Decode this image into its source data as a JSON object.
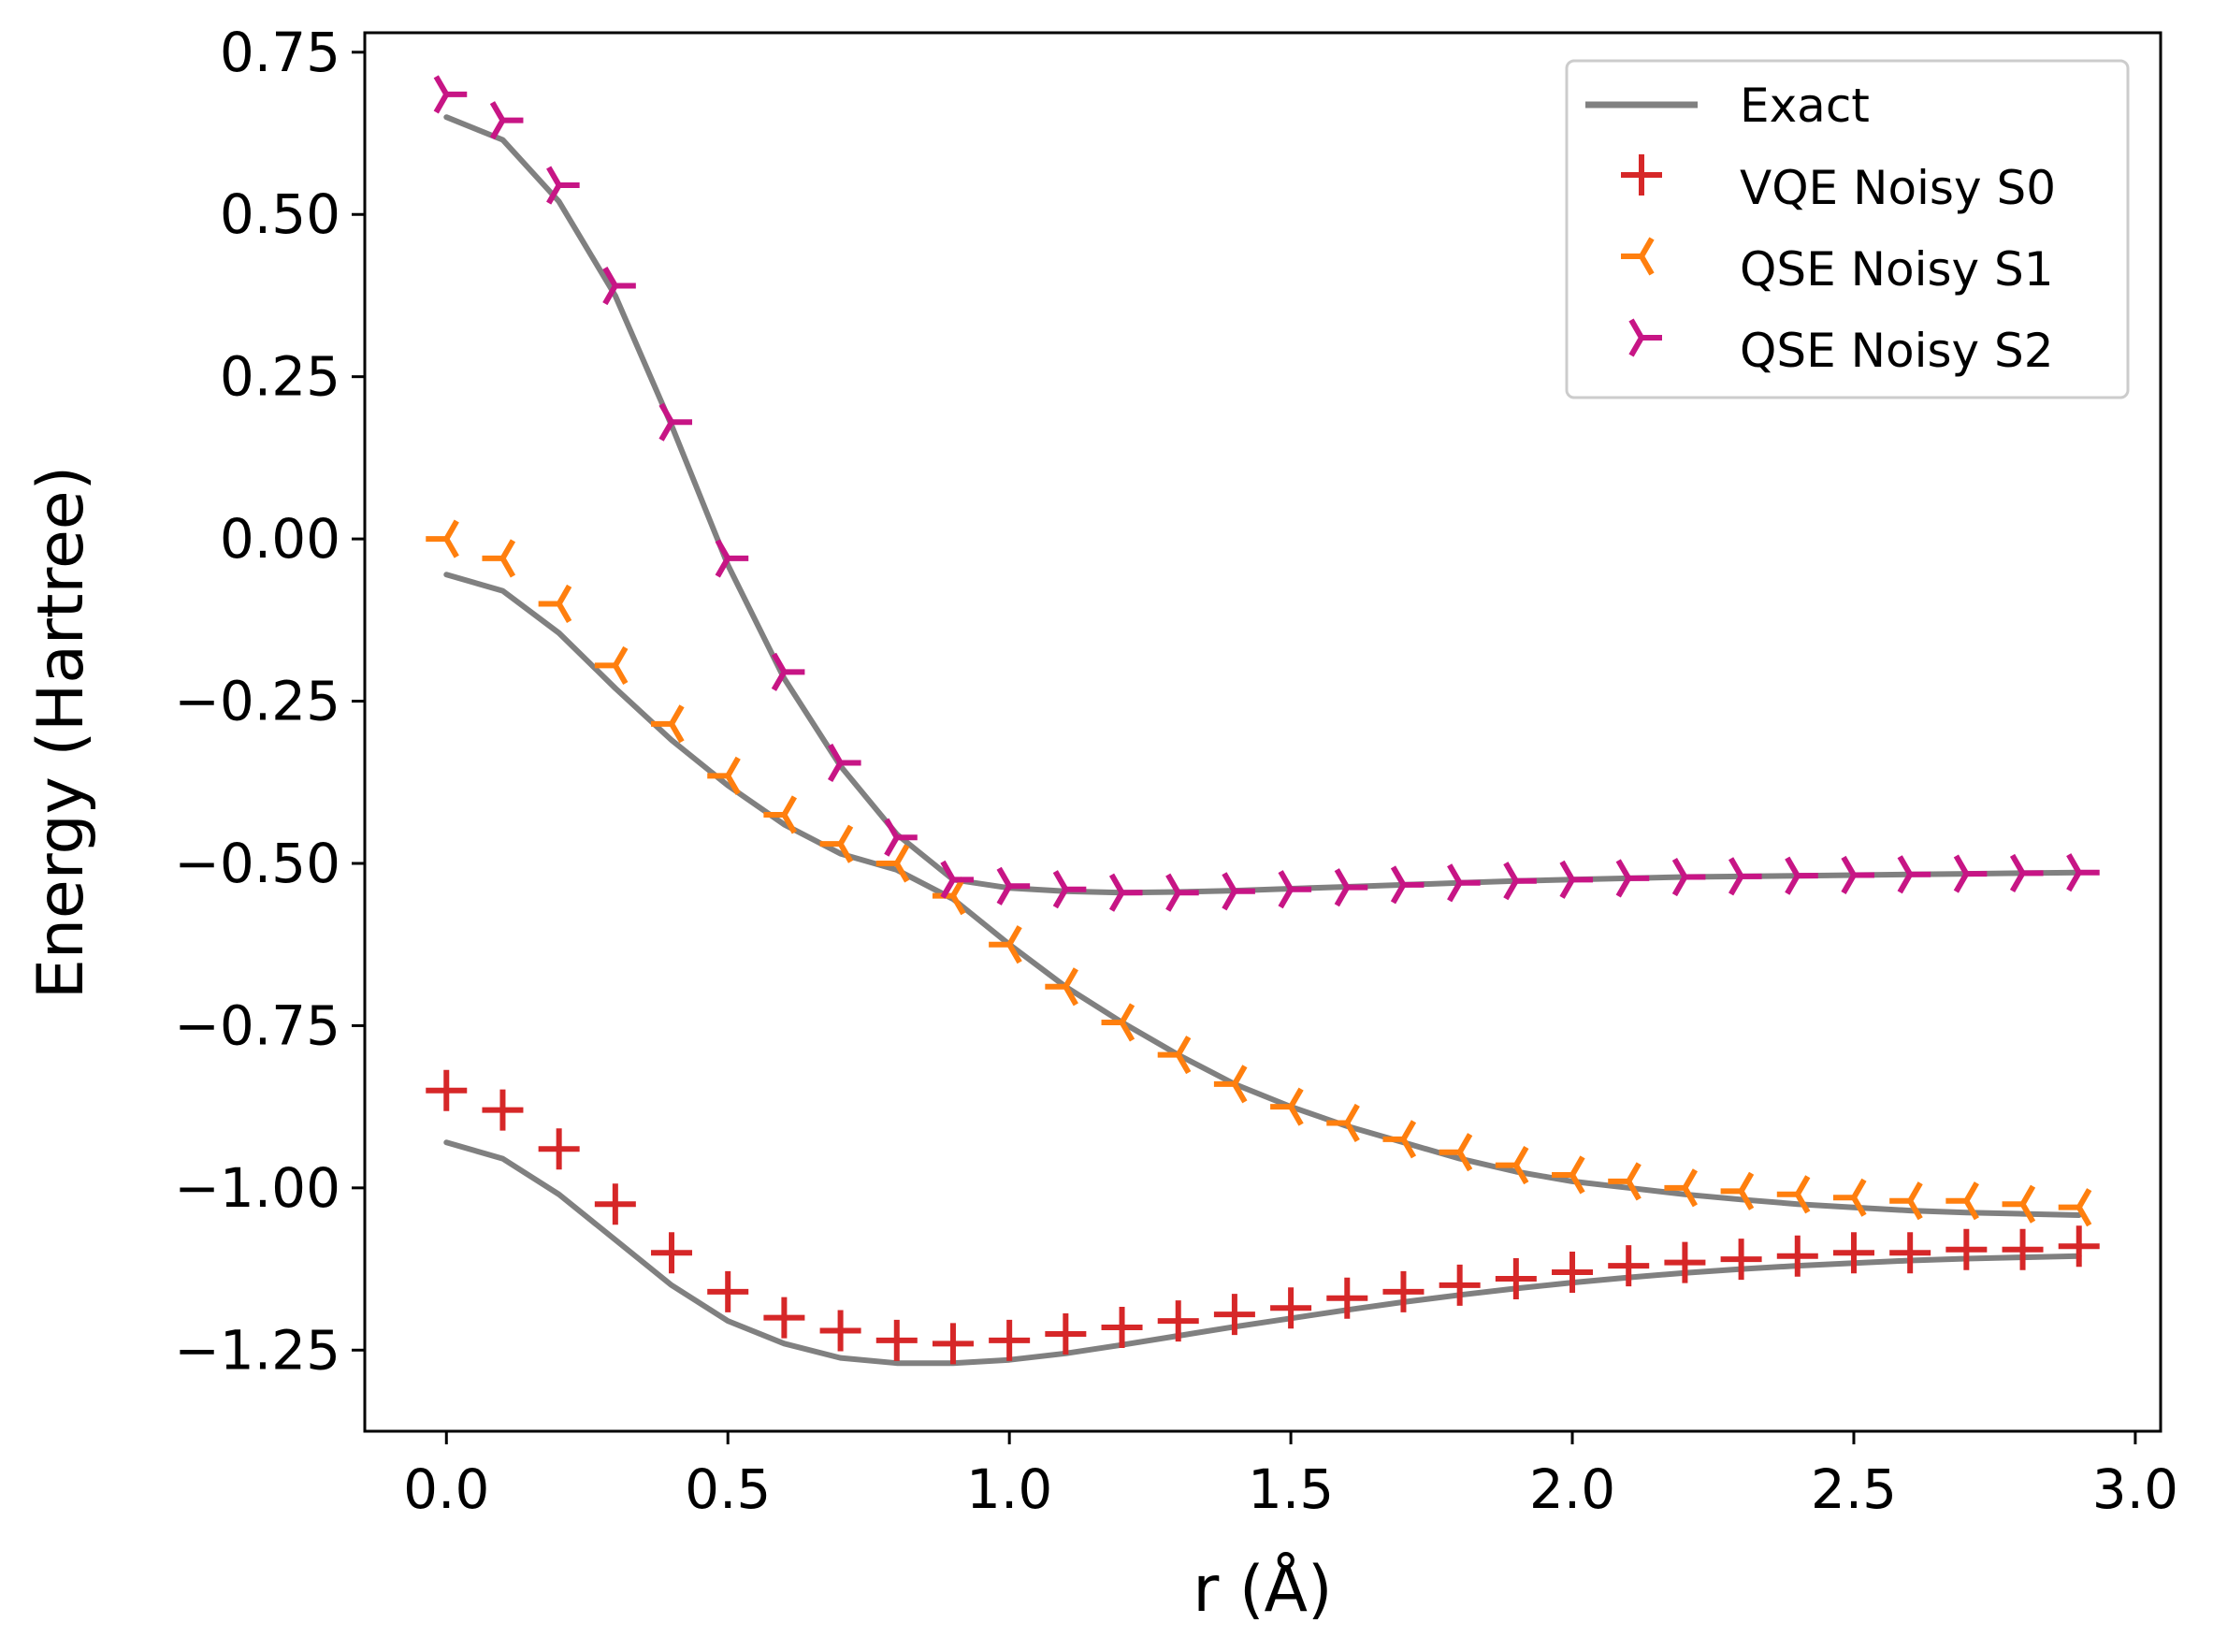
{
  "chart_data": {
    "type": "line",
    "title": "",
    "xlabel": "r (Å)",
    "ylabel": "Energy (Hartree)",
    "xlim": [
      -0.145,
      3.045
    ],
    "ylim": [
      -1.375,
      0.78
    ],
    "xticks": [
      0.0,
      0.5,
      1.0,
      1.5,
      2.0,
      2.5,
      3.0
    ],
    "xtick_labels": [
      "0.0",
      "0.5",
      "1.0",
      "1.5",
      "2.0",
      "2.5",
      "3.0"
    ],
    "yticks": [
      0.75,
      0.5,
      0.25,
      0.0,
      -0.25,
      -0.5,
      -0.75,
      -1.0,
      -1.25
    ],
    "ytick_labels": [
      "0.75",
      "0.50",
      "0.25",
      "0.00",
      "−0.25",
      "−0.50",
      "−0.75",
      "−1.00",
      "−1.25"
    ],
    "grid": false,
    "legend_position": "top-right",
    "x": [
      0.0,
      0.1,
      0.2,
      0.3,
      0.4,
      0.5,
      0.6,
      0.7,
      0.8,
      0.9,
      1.0,
      1.1,
      1.2,
      1.3,
      1.4,
      1.5,
      1.6,
      1.7,
      1.8,
      1.9,
      2.0,
      2.1,
      2.2,
      2.3,
      2.4,
      2.5,
      2.6,
      2.7,
      2.8,
      2.9
    ],
    "exact_curves": {
      "name": "Exact",
      "color": "#808080",
      "s0": [
        -0.93,
        -0.955,
        -1.01,
        -1.08,
        -1.15,
        -1.205,
        -1.24,
        -1.262,
        -1.27,
        -1.27,
        -1.265,
        -1.255,
        -1.242,
        -1.228,
        -1.214,
        -1.201,
        -1.188,
        -1.176,
        -1.165,
        -1.155,
        -1.146,
        -1.138,
        -1.131,
        -1.125,
        -1.12,
        -1.116,
        -1.112,
        -1.109,
        -1.107,
        -1.105
      ],
      "s1": [
        -0.055,
        -0.08,
        -0.145,
        -0.23,
        -0.31,
        -0.38,
        -0.44,
        -0.485,
        -0.51,
        -0.555,
        -0.625,
        -0.69,
        -0.745,
        -0.795,
        -0.84,
        -0.875,
        -0.905,
        -0.93,
        -0.955,
        -0.975,
        -0.99,
        -1.0,
        -1.01,
        -1.018,
        -1.025,
        -1.03,
        -1.035,
        -1.038,
        -1.04,
        -1.042
      ],
      "s2": [
        0.65,
        0.615,
        0.52,
        0.375,
        0.175,
        -0.04,
        -0.215,
        -0.35,
        -0.455,
        -0.525,
        -0.538,
        -0.543,
        -0.545,
        -0.544,
        -0.542,
        -0.539,
        -0.536,
        -0.533,
        -0.53,
        -0.527,
        -0.525,
        -0.523,
        -0.521,
        -0.52,
        -0.519,
        -0.518,
        -0.517,
        -0.516,
        -0.515,
        -0.514
      ]
    },
    "series": [
      {
        "name": "VQE Noisy S0",
        "marker": "plus",
        "color": "#d62728",
        "values": [
          -0.85,
          -0.88,
          -0.94,
          -1.025,
          -1.1,
          -1.16,
          -1.2,
          -1.22,
          -1.235,
          -1.24,
          -1.235,
          -1.225,
          -1.215,
          -1.205,
          -1.195,
          -1.185,
          -1.17,
          -1.16,
          -1.15,
          -1.14,
          -1.13,
          -1.12,
          -1.115,
          -1.11,
          -1.105,
          -1.1,
          -1.1,
          -1.095,
          -1.095,
          -1.09
        ]
      },
      {
        "name": "QSE Noisy S1",
        "marker": "tri_left",
        "color": "#ff7f0e",
        "values": [
          0.0,
          -0.03,
          -0.1,
          -0.195,
          -0.285,
          -0.365,
          -0.425,
          -0.47,
          -0.5,
          -0.55,
          -0.625,
          -0.69,
          -0.745,
          -0.795,
          -0.84,
          -0.875,
          -0.9,
          -0.925,
          -0.945,
          -0.965,
          -0.98,
          -0.99,
          -1.0,
          -1.005,
          -1.01,
          -1.015,
          -1.02,
          -1.02,
          -1.025,
          -1.03
        ]
      },
      {
        "name": "QSE Noisy S2",
        "marker": "tri_right",
        "color": "#c71585",
        "values": [
          0.685,
          0.645,
          0.545,
          0.39,
          0.18,
          -0.03,
          -0.205,
          -0.345,
          -0.46,
          -0.525,
          -0.535,
          -0.54,
          -0.545,
          -0.545,
          -0.543,
          -0.54,
          -0.537,
          -0.533,
          -0.53,
          -0.527,
          -0.525,
          -0.523,
          -0.521,
          -0.52,
          -0.519,
          -0.518,
          -0.517,
          -0.516,
          -0.515,
          -0.514
        ]
      }
    ],
    "legend": [
      "Exact",
      "VQE Noisy S0",
      "QSE Noisy S1",
      "QSE Noisy S2"
    ]
  }
}
